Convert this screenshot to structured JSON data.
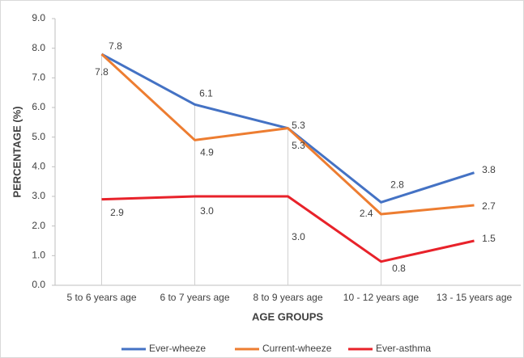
{
  "chart_data": {
    "type": "line",
    "x_label": "AGE GROUPS",
    "y_label": "PERCENTAGE (%)",
    "categories": [
      "5 to 6 years age",
      "6 to 7 years age",
      "8 to 9 years age",
      "10 - 12 years age",
      "13 - 15 years age"
    ],
    "series": [
      {
        "name": "Ever-wheeze",
        "color": "#4472c4",
        "values": [
          7.8,
          6.1,
          5.3,
          2.8,
          3.8
        ],
        "value_labels": [
          "7.8",
          "6.1",
          "5.3",
          "2.8",
          "3.8"
        ]
      },
      {
        "name": "Current-wheeze",
        "color": "#ed7d31",
        "values": [
          7.8,
          4.9,
          5.3,
          2.4,
          2.7
        ],
        "value_labels": [
          "7.8",
          "4.9",
          "5.3",
          "2.4",
          "2.7"
        ]
      },
      {
        "name": "Ever-asthma",
        "color": "#e8222a",
        "values": [
          2.9,
          3.0,
          3.0,
          0.8,
          1.5
        ],
        "value_labels": [
          "2.9",
          "3.0",
          "3.0",
          "0.8",
          "1.5"
        ]
      }
    ],
    "ylim": [
      0,
      9
    ],
    "yticks": [
      {
        "value": 0,
        "label": "0.0"
      },
      {
        "value": 1,
        "label": "1.0"
      },
      {
        "value": 2,
        "label": "2.0"
      },
      {
        "value": 3,
        "label": "3.0"
      },
      {
        "value": 4,
        "label": "4.0"
      },
      {
        "value": 5,
        "label": "5.0"
      },
      {
        "value": 6,
        "label": "6.0"
      },
      {
        "value": 7,
        "label": "7.0"
      },
      {
        "value": 8,
        "label": "8.0"
      },
      {
        "value": 9,
        "label": "9.0"
      }
    ],
    "legend": "bottom"
  }
}
